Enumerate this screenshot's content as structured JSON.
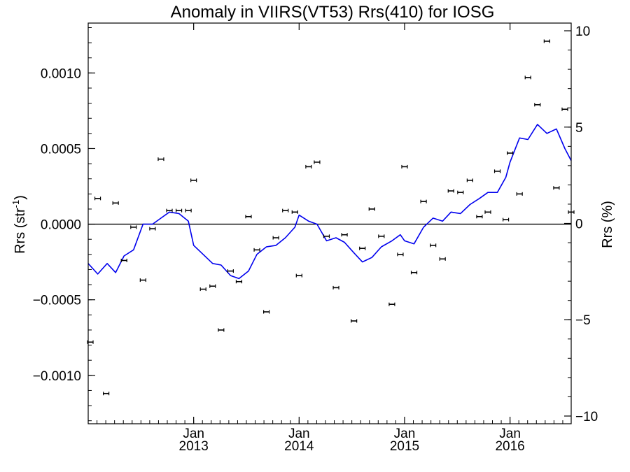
{
  "chart_data": {
    "type": "line",
    "title": "Anomaly in VIIRS(VT53) Rrs(410) for IOSG",
    "ylabel_left": "Rrs (str",
    "ylabel_left_sup": "-1",
    "ylabel_left_close": ")",
    "ylabel_right": "Rrs (%)",
    "xlabel": "",
    "ylim_left": [
      -0.00132,
      0.00133
    ],
    "ylim_right": [
      -10.4,
      10.4
    ],
    "xlim": [
      2012.0,
      2016.58
    ],
    "left_ticks": [
      {
        "value": 0.001,
        "label": "0.0010"
      },
      {
        "value": 0.0005,
        "label": "0.0005"
      },
      {
        "value": 0.0,
        "label": "0.0000"
      },
      {
        "value": -0.0005,
        "label": "−0.0005"
      },
      {
        "value": -0.001,
        "label": "−0.0010"
      }
    ],
    "right_ticks": [
      {
        "value": 10,
        "label": "10"
      },
      {
        "value": 5,
        "label": "5"
      },
      {
        "value": 0,
        "label": "0"
      },
      {
        "value": -5,
        "label": "−5"
      },
      {
        "value": -10,
        "label": "−10"
      }
    ],
    "x_ticks": [
      {
        "value": 2013.0,
        "month": "Jan",
        "year": "2013"
      },
      {
        "value": 2014.0,
        "month": "Jan",
        "year": "2014"
      },
      {
        "value": 2015.0,
        "month": "Jan",
        "year": "2015"
      },
      {
        "value": 2016.0,
        "month": "Jan",
        "year": "2016"
      }
    ],
    "zero_line": true,
    "series": [
      {
        "type": "scatter_errorbar",
        "color": "#000000",
        "points": [
          {
            "x": 2012.02,
            "y": -0.00078
          },
          {
            "x": 2012.09,
            "y": 0.00017
          },
          {
            "x": 2012.17,
            "y": -0.00112
          },
          {
            "x": 2012.26,
            "y": 0.00014
          },
          {
            "x": 2012.34,
            "y": -0.00024
          },
          {
            "x": 2012.43,
            "y": -2e-05
          },
          {
            "x": 2012.52,
            "y": -0.00037
          },
          {
            "x": 2012.61,
            "y": -3e-05
          },
          {
            "x": 2012.69,
            "y": 0.00043
          },
          {
            "x": 2012.77,
            "y": 9e-05
          },
          {
            "x": 2012.86,
            "y": 9e-05
          },
          {
            "x": 2012.95,
            "y": 9e-05
          },
          {
            "x": 2013.0,
            "y": 0.00029
          },
          {
            "x": 2013.09,
            "y": -0.00043
          },
          {
            "x": 2013.18,
            "y": -0.00041
          },
          {
            "x": 2013.26,
            "y": -0.0007
          },
          {
            "x": 2013.35,
            "y": -0.00031
          },
          {
            "x": 2013.43,
            "y": -0.00038
          },
          {
            "x": 2013.52,
            "y": 5e-05
          },
          {
            "x": 2013.6,
            "y": -0.00017
          },
          {
            "x": 2013.69,
            "y": -0.00058
          },
          {
            "x": 2013.78,
            "y": -9e-05
          },
          {
            "x": 2013.87,
            "y": 9e-05
          },
          {
            "x": 2013.96,
            "y": 8e-05
          },
          {
            "x": 2014.0,
            "y": -0.00034
          },
          {
            "x": 2014.09,
            "y": 0.00038
          },
          {
            "x": 2014.17,
            "y": 0.00041
          },
          {
            "x": 2014.26,
            "y": -8e-05
          },
          {
            "x": 2014.35,
            "y": -0.00042
          },
          {
            "x": 2014.43,
            "y": -7e-05
          },
          {
            "x": 2014.52,
            "y": -0.00064
          },
          {
            "x": 2014.6,
            "y": -0.00016
          },
          {
            "x": 2014.69,
            "y": 0.0001
          },
          {
            "x": 2014.78,
            "y": -8e-05
          },
          {
            "x": 2014.88,
            "y": -0.00053
          },
          {
            "x": 2014.96,
            "y": -0.0002
          },
          {
            "x": 2015.0,
            "y": 0.00038
          },
          {
            "x": 2015.09,
            "y": -0.00032
          },
          {
            "x": 2015.18,
            "y": 0.00015
          },
          {
            "x": 2015.27,
            "y": -0.00014
          },
          {
            "x": 2015.36,
            "y": -0.00023
          },
          {
            "x": 2015.44,
            "y": 0.00022
          },
          {
            "x": 2015.53,
            "y": 0.00021
          },
          {
            "x": 2015.62,
            "y": 0.00029
          },
          {
            "x": 2015.71,
            "y": 5e-05
          },
          {
            "x": 2015.79,
            "y": 8e-05
          },
          {
            "x": 2015.88,
            "y": 0.00035
          },
          {
            "x": 2015.96,
            "y": 3e-05
          },
          {
            "x": 2016.0,
            "y": 0.00047
          },
          {
            "x": 2016.09,
            "y": 0.0002
          },
          {
            "x": 2016.17,
            "y": 0.00097
          },
          {
            "x": 2016.26,
            "y": 0.00079
          },
          {
            "x": 2016.35,
            "y": 0.00121
          },
          {
            "x": 2016.44,
            "y": 0.00024
          },
          {
            "x": 2016.52,
            "y": 0.00076
          },
          {
            "x": 2016.58,
            "y": 8e-05
          }
        ]
      },
      {
        "type": "line",
        "color": "#0000ee",
        "points": [
          {
            "x": 2012.0,
            "y": -0.00026
          },
          {
            "x": 2012.09,
            "y": -0.00033
          },
          {
            "x": 2012.18,
            "y": -0.00026
          },
          {
            "x": 2012.26,
            "y": -0.00032
          },
          {
            "x": 2012.34,
            "y": -0.00021
          },
          {
            "x": 2012.43,
            "y": -0.00017
          },
          {
            "x": 2012.52,
            "y": 0.0
          },
          {
            "x": 2012.61,
            "y": 0.0
          },
          {
            "x": 2012.69,
            "y": 4e-05
          },
          {
            "x": 2012.77,
            "y": 8e-05
          },
          {
            "x": 2012.86,
            "y": 7e-05
          },
          {
            "x": 2012.95,
            "y": 2e-05
          },
          {
            "x": 2013.0,
            "y": -0.00014
          },
          {
            "x": 2013.09,
            "y": -0.0002
          },
          {
            "x": 2013.18,
            "y": -0.00026
          },
          {
            "x": 2013.26,
            "y": -0.00027
          },
          {
            "x": 2013.35,
            "y": -0.00034
          },
          {
            "x": 2013.43,
            "y": -0.00036
          },
          {
            "x": 2013.52,
            "y": -0.00031
          },
          {
            "x": 2013.6,
            "y": -0.0002
          },
          {
            "x": 2013.69,
            "y": -0.00015
          },
          {
            "x": 2013.78,
            "y": -0.00014
          },
          {
            "x": 2013.87,
            "y": -9e-05
          },
          {
            "x": 2013.96,
            "y": -2e-05
          },
          {
            "x": 2014.0,
            "y": 6e-05
          },
          {
            "x": 2014.09,
            "y": 2e-05
          },
          {
            "x": 2014.17,
            "y": 0.0
          },
          {
            "x": 2014.26,
            "y": -0.00011
          },
          {
            "x": 2014.35,
            "y": -9e-05
          },
          {
            "x": 2014.43,
            "y": -0.00012
          },
          {
            "x": 2014.52,
            "y": -0.00019
          },
          {
            "x": 2014.6,
            "y": -0.00025
          },
          {
            "x": 2014.69,
            "y": -0.00022
          },
          {
            "x": 2014.78,
            "y": -0.00015
          },
          {
            "x": 2014.88,
            "y": -0.00011
          },
          {
            "x": 2014.96,
            "y": -7e-05
          },
          {
            "x": 2015.0,
            "y": -0.00011
          },
          {
            "x": 2015.09,
            "y": -0.00013
          },
          {
            "x": 2015.18,
            "y": -2e-05
          },
          {
            "x": 2015.27,
            "y": 4e-05
          },
          {
            "x": 2015.36,
            "y": 2e-05
          },
          {
            "x": 2015.44,
            "y": 8e-05
          },
          {
            "x": 2015.53,
            "y": 7e-05
          },
          {
            "x": 2015.62,
            "y": 0.00013
          },
          {
            "x": 2015.71,
            "y": 0.00017
          },
          {
            "x": 2015.79,
            "y": 0.00021
          },
          {
            "x": 2015.88,
            "y": 0.00021
          },
          {
            "x": 2015.96,
            "y": 0.00031
          },
          {
            "x": 2016.0,
            "y": 0.00041
          },
          {
            "x": 2016.09,
            "y": 0.00057
          },
          {
            "x": 2016.17,
            "y": 0.00056
          },
          {
            "x": 2016.26,
            "y": 0.00066
          },
          {
            "x": 2016.35,
            "y": 0.0006
          },
          {
            "x": 2016.44,
            "y": 0.00063
          },
          {
            "x": 2016.52,
            "y": 0.0005
          },
          {
            "x": 2016.58,
            "y": 0.00042
          }
        ]
      }
    ]
  }
}
